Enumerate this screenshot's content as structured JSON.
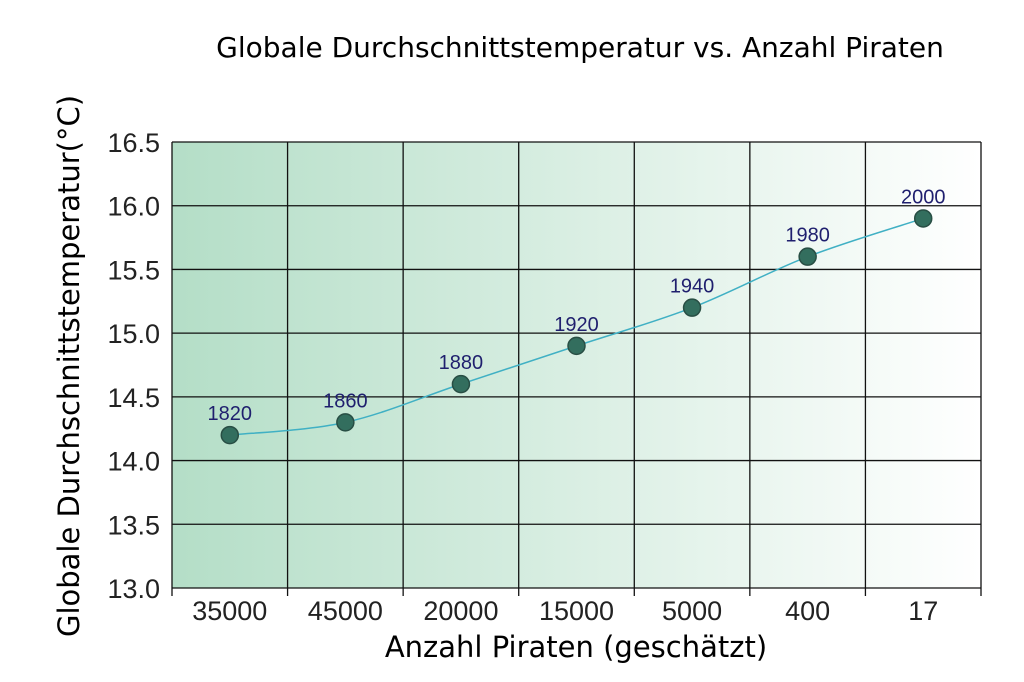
{
  "chart_data": {
    "type": "line",
    "title": "Globale Durchschnittstemperatur vs. Anzahl Piraten",
    "xlabel": "Anzahl Piraten (geschätzt)",
    "ylabel": "Globale Durchschnittstemperatur(°C)",
    "ylim": [
      13.0,
      16.5
    ],
    "yticks": [
      "13.0",
      "13.5",
      "14.0",
      "14.5",
      "15.0",
      "15.5",
      "16.0",
      "16.5"
    ],
    "categories": [
      "35000",
      "45000",
      "20000",
      "15000",
      "5000",
      "400",
      "17"
    ],
    "values": [
      14.2,
      14.3,
      14.6,
      14.9,
      15.2,
      15.6,
      15.9
    ],
    "point_labels": [
      "1820",
      "1860",
      "1880",
      "1920",
      "1940",
      "1980",
      "2000"
    ],
    "grid": true,
    "colors": {
      "line": "#40b0c4",
      "marker_fill": "#336e5e",
      "marker_stroke": "#284e44",
      "label": "#1f1f6e",
      "background_left": "#b4dec7",
      "background_right": "#ffffff"
    }
  }
}
